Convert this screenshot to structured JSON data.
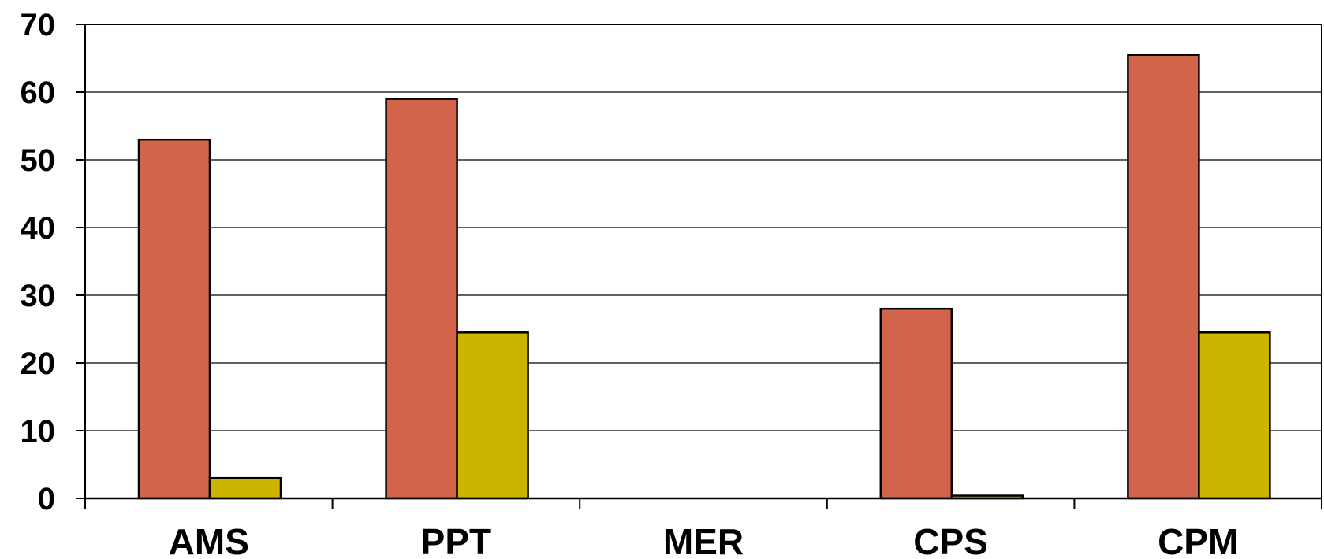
{
  "chart_data": {
    "type": "bar",
    "title": "",
    "xlabel": "",
    "ylabel": "",
    "categories": [
      "AMS",
      "PPT",
      "MER",
      "CPS",
      "CPM"
    ],
    "series": [
      {
        "color": "#D2644B",
        "values": [
          53,
          59,
          0,
          28,
          65.5
        ]
      },
      {
        "color": "#CCB400",
        "values": [
          3,
          24.5,
          0,
          0.4,
          24.5
        ]
      }
    ],
    "ylim": [
      0,
      70
    ],
    "yticks": [
      0,
      10,
      20,
      30,
      40,
      50,
      60,
      70
    ],
    "grid": true,
    "legend": "none"
  }
}
